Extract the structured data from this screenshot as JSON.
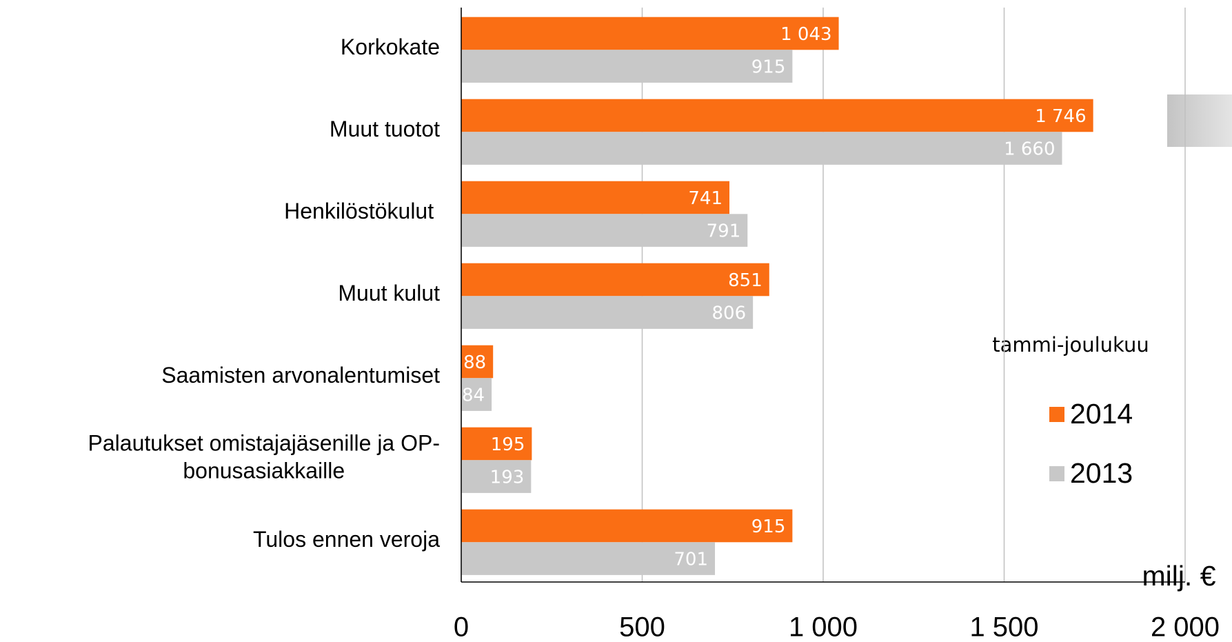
{
  "chart_data": {
    "type": "barh",
    "categories": [
      "Korkokate",
      "Muut tuotot",
      "Henkilöstökulut ",
      "Muut kulut",
      "Saamisten arvonalentumiset",
      "Palautukset omistajajäsenille ja OP-bonusasiakkaille",
      "Tulos ennen veroja"
    ],
    "series": [
      {
        "name": "2014",
        "color": "#fa6e14",
        "values": [
          1043,
          1746,
          741,
          851,
          88,
          195,
          915
        ],
        "value_labels": [
          "1 043",
          "1 746",
          "741",
          "851",
          "88",
          "195",
          "915"
        ]
      },
      {
        "name": "2013",
        "color": "#c8c8c8",
        "values": [
          915,
          1660,
          791,
          806,
          84,
          193,
          701
        ],
        "value_labels": [
          "915",
          "1 660",
          "791",
          "806",
          "84",
          "193",
          "701"
        ]
      }
    ],
    "xlim": [
      0,
      2000
    ],
    "xticks": [
      0,
      500,
      {
        "value": 1000,
        "label": "1 000"
      },
      {
        "value": 1500,
        "label": "1 500"
      },
      {
        "value": 2000,
        "label": "2 000"
      }
    ],
    "grid": true,
    "legend_title": "tammi-joulukuu",
    "unit_label": "milj. €"
  }
}
